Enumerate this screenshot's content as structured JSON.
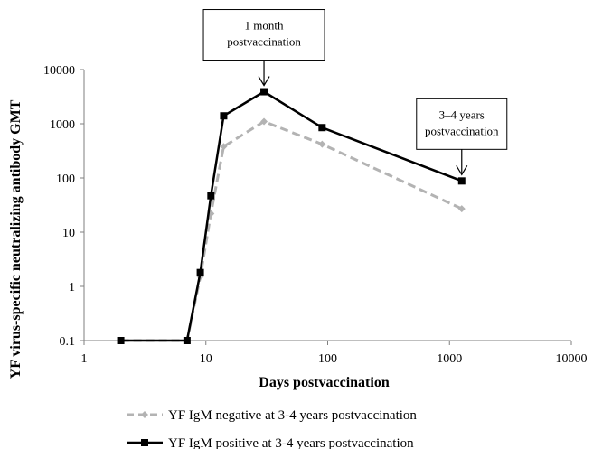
{
  "chart_data": {
    "type": "line",
    "xscale": "log",
    "yscale": "log",
    "xlim": [
      1,
      10000
    ],
    "ylim": [
      0.1,
      10000
    ],
    "xlabel": "Days postvaccination",
    "ylabel": "YF virus-specific neutralizing antibody GMT",
    "xticks": [
      "1",
      "10",
      "100",
      "1000",
      "10000"
    ],
    "yticks": [
      "0.1",
      "1",
      "10",
      "100",
      "1000",
      "10000"
    ],
    "grid": false,
    "legend_position": "bottom",
    "series": [
      {
        "name": "YF IgM negative at 3-4 years postvaccination",
        "color": "#b3b3b3",
        "line_style": "dashed",
        "marker": "diamond",
        "x": [
          2,
          7,
          9,
          11,
          14,
          30,
          90,
          1260
        ],
        "y": [
          0.1,
          0.1,
          1.5,
          22,
          380,
          1100,
          420,
          27
        ]
      },
      {
        "name": "YF IgM positive at 3-4 years postvaccination",
        "color": "#000000",
        "line_style": "solid",
        "marker": "square",
        "x": [
          2,
          7,
          9,
          11,
          14,
          30,
          90,
          1260
        ],
        "y": [
          0.1,
          0.1,
          1.8,
          47,
          1400,
          3900,
          850,
          88
        ]
      }
    ],
    "annotations": [
      {
        "lines": [
          "1 month",
          "postvaccination"
        ],
        "x": 30,
        "y": 3900
      },
      {
        "lines": [
          "3–4 years",
          "postvaccination"
        ],
        "x": 1260,
        "y": 88
      }
    ]
  }
}
